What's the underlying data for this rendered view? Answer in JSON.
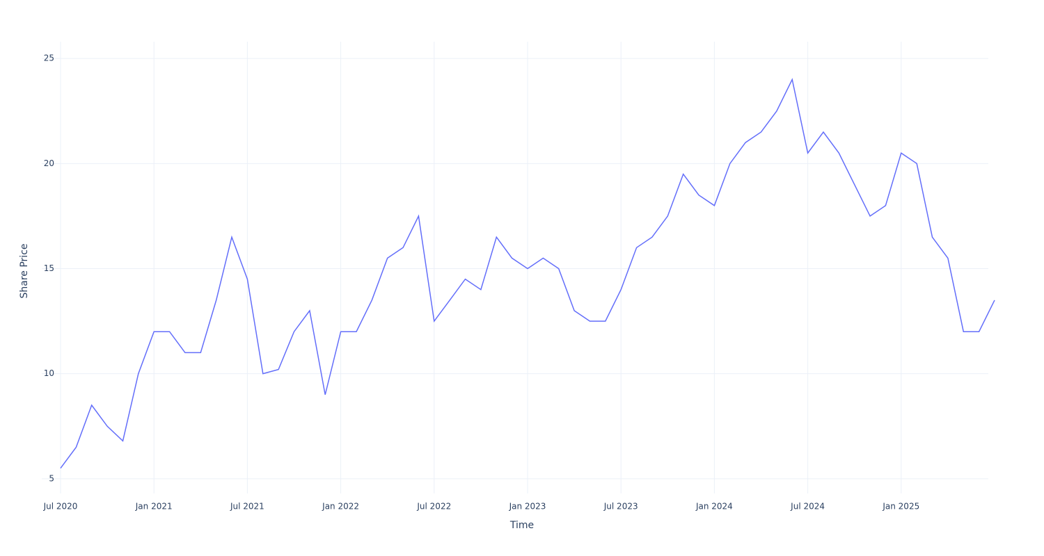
{
  "chart_data": {
    "type": "line",
    "x_label": "Time",
    "y_label": "Share Price",
    "x": [
      "2020-07",
      "2020-08",
      "2020-09",
      "2020-10",
      "2020-11",
      "2020-12",
      "2021-01",
      "2021-02",
      "2021-03",
      "2021-04",
      "2021-05",
      "2021-06",
      "2021-07",
      "2021-08",
      "2021-09",
      "2021-10",
      "2021-11",
      "2021-12",
      "2022-01",
      "2022-02",
      "2022-03",
      "2022-04",
      "2022-05",
      "2022-06",
      "2022-07",
      "2022-08",
      "2022-09",
      "2022-10",
      "2022-11",
      "2022-12",
      "2023-01",
      "2023-02",
      "2023-03",
      "2023-04",
      "2023-05",
      "2023-06",
      "2023-07",
      "2023-08",
      "2023-09",
      "2023-10",
      "2023-11",
      "2023-12",
      "2024-01",
      "2024-02",
      "2024-03",
      "2024-04",
      "2024-05",
      "2024-06",
      "2024-07",
      "2024-08",
      "2024-09",
      "2024-10",
      "2024-11",
      "2024-12",
      "2025-01",
      "2025-02",
      "2025-03",
      "2025-04",
      "2025-05",
      "2025-06",
      "2025-07"
    ],
    "series": [
      {
        "name": "Share Price",
        "color": "#636efa",
        "values": [
          5.5,
          6.5,
          8.5,
          7.5,
          6.8,
          10,
          12,
          12,
          11,
          11,
          13.5,
          16.5,
          14.5,
          10,
          10.2,
          12,
          13,
          9,
          12,
          12,
          13.5,
          15.5,
          16,
          17.5,
          12.5,
          13.5,
          14.5,
          14,
          16.5,
          15.5,
          15,
          15.5,
          15,
          13,
          12.5,
          12.5,
          14,
          16,
          16.5,
          17.5,
          19.5,
          18.5,
          18,
          20,
          21,
          21.5,
          22.5,
          24,
          20.5,
          21.5,
          20.5,
          19,
          17.5,
          18,
          20.5,
          20,
          16.5,
          15.5,
          12,
          12,
          13.5
        ]
      }
    ],
    "xlim": [
      "2020-07",
      "2025-07"
    ],
    "xticks": [
      {
        "value": "2020-07",
        "label": "Jul 2020"
      },
      {
        "value": "2021-01",
        "label": "Jan 2021"
      },
      {
        "value": "2021-07",
        "label": "Jul 2021"
      },
      {
        "value": "2022-01",
        "label": "Jan 2022"
      },
      {
        "value": "2022-07",
        "label": "Jul 2022"
      },
      {
        "value": "2023-01",
        "label": "Jan 2023"
      },
      {
        "value": "2023-07",
        "label": "Jul 2023"
      },
      {
        "value": "2024-01",
        "label": "Jan 2024"
      },
      {
        "value": "2024-07",
        "label": "Jul 2024"
      },
      {
        "value": "2025-01",
        "label": "Jan 2025"
      }
    ],
    "ylim": [
      4.3,
      25.8
    ],
    "yticks": [
      5,
      10,
      15,
      20,
      25
    ],
    "grid": true
  }
}
